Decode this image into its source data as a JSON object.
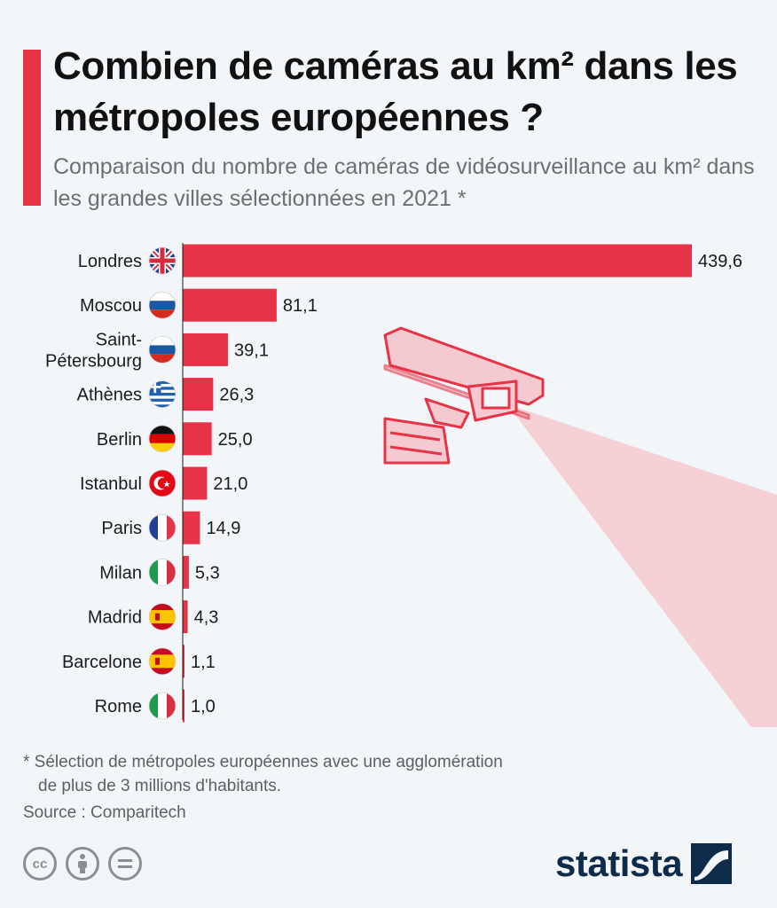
{
  "header": {
    "title": "Combien de caméras au km² dans les métropoles européennes ?",
    "subtitle": "Comparaison du nombre de caméras de vidéosurveillance au km² dans les grandes villes sélectionnées en 2021 *"
  },
  "chart_data": {
    "type": "bar",
    "orientation": "horizontal",
    "categories": [
      "Londres",
      "Moscou",
      "Saint-Pétersbourg",
      "Athènes",
      "Berlin",
      "Istanbul",
      "Paris",
      "Milan",
      "Madrid",
      "Barcelone",
      "Rome"
    ],
    "category_lines": [
      [
        "Londres"
      ],
      [
        "Moscou"
      ],
      [
        "Saint-",
        "Pétersbourg"
      ],
      [
        "Athènes"
      ],
      [
        "Berlin"
      ],
      [
        "Istanbul"
      ],
      [
        "Paris"
      ],
      [
        "Milan"
      ],
      [
        "Madrid"
      ],
      [
        "Barcelone"
      ],
      [
        "Rome"
      ]
    ],
    "values": [
      439.6,
      81.1,
      39.1,
      26.3,
      25.0,
      21.0,
      14.9,
      5.3,
      4.3,
      1.1,
      1.0
    ],
    "value_labels": [
      "439,6",
      "81,1",
      "39,1",
      "26,3",
      "25,0",
      "21,0",
      "14,9",
      "5,3",
      "4,3",
      "1,1",
      "1,0"
    ],
    "flags": [
      "uk",
      "russia",
      "russia",
      "greece",
      "germany",
      "turkey",
      "france",
      "italy",
      "spain",
      "spain",
      "italy"
    ],
    "xlim": [
      0,
      439.6
    ],
    "grid": false,
    "bar_color": "#e63347"
  },
  "colors": {
    "accent": "#e63347",
    "background": "#f3f6f9",
    "camera_pink": "#f4c9cf",
    "brand_navy": "#0e2b49"
  },
  "footer": {
    "footnote_line1": "* Sélection de métropoles européennes avec une agglomération",
    "footnote_line2": "de plus de 3 millions d'habitants.",
    "source": "Source : Comparitech",
    "license_icons": [
      "cc-icon",
      "by-icon",
      "nd-icon"
    ],
    "brand": "statista"
  }
}
